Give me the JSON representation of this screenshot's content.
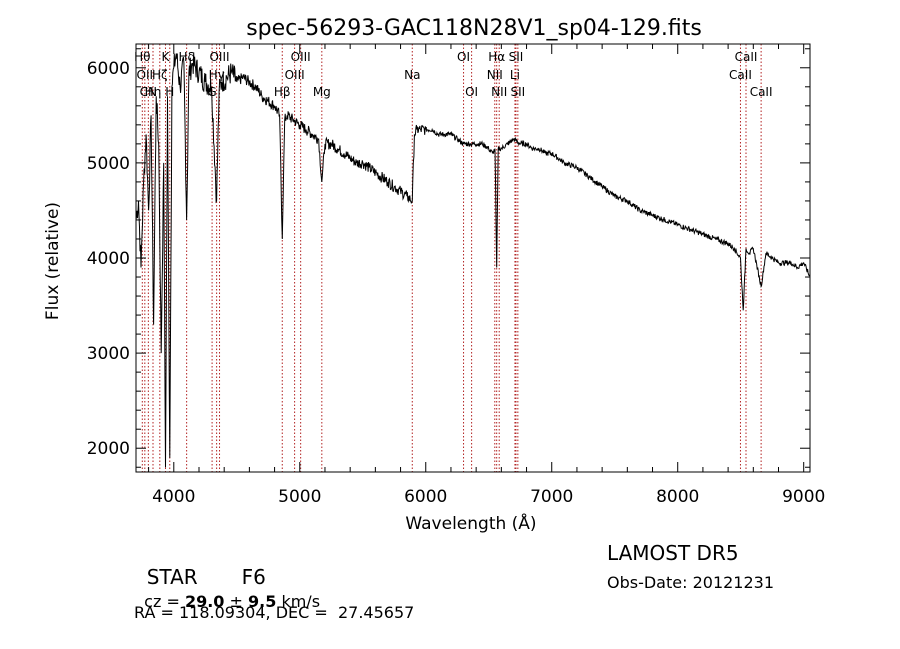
{
  "chart_data": {
    "type": "line",
    "title": "spec-56293-GAC118N28V1_sp04-129.fits",
    "xlabel": "Wavelength (Å)",
    "ylabel": "Flux (relative)",
    "xlim": [
      3700,
      9050
    ],
    "ylim": [
      1750,
      6250
    ],
    "xticks": [
      {
        "value": 4000,
        "label": "4000"
      },
      {
        "value": 5000,
        "label": "5000"
      },
      {
        "value": 6000,
        "label": "6000"
      },
      {
        "value": 7000,
        "label": "7000"
      },
      {
        "value": 8000,
        "label": "8000"
      },
      {
        "value": 9000,
        "label": "9000"
      }
    ],
    "yticks": [
      {
        "value": 2000,
        "label": "2000"
      },
      {
        "value": 3000,
        "label": "3000"
      },
      {
        "value": 4000,
        "label": "4000"
      },
      {
        "value": 5000,
        "label": "5000"
      },
      {
        "value": 6000,
        "label": "6000"
      }
    ],
    "line_color": "#000000",
    "marker_color": "#b22222",
    "spectrum": {
      "x": [
        3700,
        3720,
        3740,
        3760,
        3780,
        3800,
        3820,
        3840,
        3860,
        3880,
        3900,
        3920,
        3934,
        3950,
        3968,
        3985,
        4000,
        4020,
        4050,
        4080,
        4102,
        4120,
        4150,
        4200,
        4250,
        4300,
        4340,
        4360,
        4380,
        4420,
        4460,
        4500,
        4550,
        4600,
        4650,
        4700,
        4750,
        4800,
        4840,
        4861,
        4880,
        4900,
        4950,
        5000,
        5050,
        5100,
        5150,
        5175,
        5200,
        5250,
        5300,
        5350,
        5400,
        5450,
        5500,
        5550,
        5600,
        5650,
        5700,
        5750,
        5800,
        5850,
        5893,
        5910,
        5930,
        5960,
        6000,
        6050,
        6100,
        6150,
        6200,
        6250,
        6300,
        6350,
        6400,
        6450,
        6500,
        6530,
        6550,
        6563,
        6575,
        6600,
        6650,
        6700,
        6750,
        6800,
        6850,
        6900,
        6950,
        7000,
        7100,
        7200,
        7300,
        7400,
        7500,
        7600,
        7700,
        7800,
        7900,
        8000,
        8100,
        8200,
        8300,
        8400,
        8450,
        8498,
        8520,
        8542,
        8570,
        8600,
        8662,
        8700,
        8750,
        8800,
        8850,
        8900,
        8950,
        9000,
        9050
      ],
      "y": [
        4400,
        4600,
        3900,
        4800,
        5300,
        4500,
        5500,
        3300,
        5700,
        5200,
        3000,
        5000,
        1800,
        5700,
        1900,
        5800,
        6000,
        6150,
        5800,
        6050,
        4400,
        5950,
        6050,
        5950,
        5850,
        5800,
        4600,
        5750,
        5850,
        5900,
        5950,
        5850,
        5900,
        5850,
        5800,
        5700,
        5650,
        5600,
        5500,
        4200,
        5450,
        5500,
        5450,
        5400,
        5350,
        5300,
        5250,
        4800,
        5200,
        5200,
        5150,
        5100,
        5050,
        5000,
        5000,
        4950,
        4900,
        4850,
        4800,
        4750,
        4700,
        4650,
        4600,
        5300,
        5350,
        5350,
        5350,
        5350,
        5300,
        5300,
        5300,
        5250,
        5200,
        5200,
        5200,
        5200,
        5150,
        5100,
        5150,
        3900,
        5150,
        5150,
        5200,
        5250,
        5200,
        5200,
        5150,
        5150,
        5100,
        5100,
        5000,
        4950,
        4850,
        4750,
        4650,
        4600,
        4500,
        4450,
        4400,
        4350,
        4300,
        4250,
        4200,
        4150,
        4100,
        4000,
        3450,
        4100,
        4050,
        4100,
        3700,
        4050,
        4000,
        3950,
        3950,
        3950,
        3900,
        3950,
        3800
      ]
    },
    "lines": [
      {
        "x": 3750,
        "label": "Hθ",
        "row": 1
      },
      {
        "x": 3770,
        "label": "OII",
        "row": 2
      },
      {
        "x": 3798,
        "label": "CN",
        "row": 3
      },
      {
        "x": 3835,
        "label": "Hη",
        "row": 3
      },
      {
        "x": 3889,
        "label": "Hζ",
        "row": 2
      },
      {
        "x": 3934,
        "label": "K",
        "row": 1
      },
      {
        "x": 3968,
        "label": "H",
        "row": 3
      },
      {
        "x": 4102,
        "label": "Hδ",
        "row": 1
      },
      {
        "x": 4304,
        "label": "G",
        "row": 3
      },
      {
        "x": 4340,
        "label": "Hγ",
        "row": 2
      },
      {
        "x": 4363,
        "label": "OIII",
        "row": 1
      },
      {
        "x": 4861,
        "label": "Hβ",
        "row": 3
      },
      {
        "x": 4959,
        "label": "OIII",
        "row": 2
      },
      {
        "x": 5007,
        "label": "OIII",
        "row": 1
      },
      {
        "x": 5175,
        "label": "Mg",
        "row": 3
      },
      {
        "x": 5893,
        "label": "Na",
        "row": 2
      },
      {
        "x": 6300,
        "label": "OI",
        "row": 1
      },
      {
        "x": 6364,
        "label": "OI",
        "row": 3
      },
      {
        "x": 6548,
        "label": "NII",
        "row": 2
      },
      {
        "x": 6563,
        "label": "Hα",
        "row": 1
      },
      {
        "x": 6583,
        "label": "NII",
        "row": 3
      },
      {
        "x": 6708,
        "label": "Li",
        "row": 2
      },
      {
        "x": 6716,
        "label": "SII",
        "row": 1
      },
      {
        "x": 6731,
        "label": "SII",
        "row": 3
      },
      {
        "x": 8498,
        "label": "CaII",
        "row": 2
      },
      {
        "x": 8542,
        "label": "CaII",
        "row": 1
      },
      {
        "x": 8662,
        "label": "CaII",
        "row": 3
      }
    ]
  },
  "info": {
    "class_label": "STAR",
    "subclass": "F6",
    "survey": "LAMOST DR5",
    "cz_prefix": "cz = ",
    "cz_value": "29.0",
    "cz_sep": " ± ",
    "cz_error": "9.5",
    "cz_unit": " km/s",
    "obs_date": "Obs-Date: 20121231",
    "coords": "RA = 118.09304, DEC =  27.45657"
  }
}
